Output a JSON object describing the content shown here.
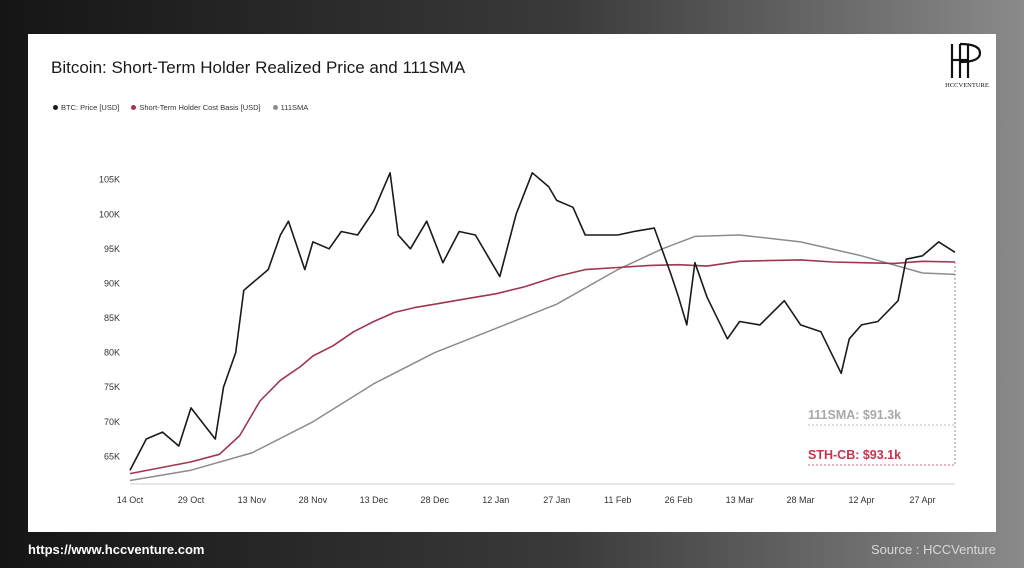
{
  "header": {
    "title": "Bitcoin: Short-Term Holder Realized Price and 111SMA"
  },
  "brand": {
    "logo_text": "HCCVENTURE"
  },
  "footer": {
    "url": "https://www.hccventure.com",
    "source": "Source : HCCVenture"
  },
  "colors": {
    "price": "#1a1a1a",
    "sth": "#a0354f",
    "sma": "#8c8c8c",
    "sth_label": "#c8324e",
    "sma_label": "#a8a8a8"
  },
  "chart_data": {
    "type": "line",
    "title": "Bitcoin: Short-Term Holder Realized Price and 111SMA",
    "xlabel": "",
    "ylabel": "",
    "ylim": [
      61000,
      109000
    ],
    "x_ticks": [
      "14 Oct",
      "29 Oct",
      "13 Nov",
      "28 Nov",
      "13 Dec",
      "28 Dec",
      "12 Jan",
      "27 Jan",
      "11 Feb",
      "26 Feb",
      "13 Mar",
      "28 Mar",
      "12 Apr",
      "27 Apr"
    ],
    "y_ticks": [
      {
        "value": 65000,
        "label": "65K"
      },
      {
        "value": 70000,
        "label": "70K"
      },
      {
        "value": 75000,
        "label": "75K"
      },
      {
        "value": 80000,
        "label": "80K"
      },
      {
        "value": 85000,
        "label": "85K"
      },
      {
        "value": 90000,
        "label": "90K"
      },
      {
        "value": 95000,
        "label": "95K"
      },
      {
        "value": 100000,
        "label": "100K"
      },
      {
        "value": 105000,
        "label": "105K"
      }
    ],
    "legend": [
      "BTC: Price [USD]",
      "Short-Term Holder Cost Basis [USD]",
      "111SMA"
    ],
    "legend_placement": "top-left",
    "grid": false,
    "series": [
      {
        "name": "BTC: Price [USD]",
        "x": [
          "2024-10-14",
          "2024-10-18",
          "2024-10-22",
          "2024-10-26",
          "2024-10-29",
          "2024-11-02",
          "2024-11-04",
          "2024-11-06",
          "2024-11-09",
          "2024-11-11",
          "2024-11-13",
          "2024-11-17",
          "2024-11-20",
          "2024-11-22",
          "2024-11-26",
          "2024-11-28",
          "2024-12-02",
          "2024-12-05",
          "2024-12-09",
          "2024-12-13",
          "2024-12-17",
          "2024-12-19",
          "2024-12-22",
          "2024-12-26",
          "2024-12-30",
          "2025-01-03",
          "2025-01-07",
          "2025-01-10",
          "2025-01-13",
          "2025-01-17",
          "2025-01-21",
          "2025-01-25",
          "2025-01-27",
          "2025-01-31",
          "2025-02-03",
          "2025-02-07",
          "2025-02-11",
          "2025-02-15",
          "2025-02-20",
          "2025-02-24",
          "2025-02-26",
          "2025-02-28",
          "2025-03-02",
          "2025-03-05",
          "2025-03-10",
          "2025-03-13",
          "2025-03-18",
          "2025-03-24",
          "2025-03-28",
          "2025-04-02",
          "2025-04-07",
          "2025-04-09",
          "2025-04-12",
          "2025-04-16",
          "2025-04-21",
          "2025-04-23",
          "2025-04-27",
          "2025-05-01",
          "2025-05-05"
        ],
        "values": [
          63000,
          67500,
          68500,
          66500,
          72000,
          69000,
          67500,
          75000,
          80000,
          89000,
          90000,
          92000,
          97000,
          99000,
          92000,
          96000,
          95000,
          97500,
          97000,
          100500,
          106000,
          97000,
          95000,
          99000,
          93000,
          97500,
          97000,
          94000,
          91000,
          100000,
          106000,
          104000,
          102000,
          101000,
          97000,
          97000,
          97000,
          97500,
          98000,
          91500,
          88000,
          84000,
          93000,
          88000,
          82000,
          84500,
          84000,
          87500,
          84000,
          83000,
          77000,
          82000,
          84000,
          84500,
          87500,
          93500,
          94000,
          96000,
          94500
        ]
      },
      {
        "name": "Short-Term Holder Cost Basis [USD]",
        "x": [
          "2024-10-14",
          "2024-10-22",
          "2024-10-29",
          "2024-11-05",
          "2024-11-10",
          "2024-11-15",
          "2024-11-20",
          "2024-11-25",
          "2024-11-28",
          "2024-12-03",
          "2024-12-08",
          "2024-12-13",
          "2024-12-18",
          "2024-12-23",
          "2024-12-28",
          "2025-01-05",
          "2025-01-12",
          "2025-01-19",
          "2025-01-27",
          "2025-02-03",
          "2025-02-11",
          "2025-02-19",
          "2025-02-26",
          "2025-03-05",
          "2025-03-13",
          "2025-03-20",
          "2025-03-28",
          "2025-04-05",
          "2025-04-12",
          "2025-04-20",
          "2025-04-27",
          "2025-05-05"
        ],
        "values": [
          62500,
          63400,
          64200,
          65300,
          68000,
          73000,
          76000,
          78000,
          79500,
          81000,
          83000,
          84500,
          85800,
          86500,
          87000,
          87800,
          88500,
          89500,
          91000,
          92000,
          92300,
          92600,
          92700,
          92500,
          93200,
          93300,
          93400,
          93100,
          93000,
          92900,
          93200,
          93100
        ]
      },
      {
        "name": "111SMA",
        "x": [
          "2024-10-14",
          "2024-10-29",
          "2024-11-13",
          "2024-11-28",
          "2024-12-13",
          "2024-12-28",
          "2025-01-12",
          "2025-01-27",
          "2025-02-11",
          "2025-02-22",
          "2025-03-02",
          "2025-03-13",
          "2025-03-28",
          "2025-04-12",
          "2025-04-27",
          "2025-05-05"
        ],
        "values": [
          61500,
          63000,
          65500,
          70000,
          75500,
          80000,
          83500,
          87000,
          92000,
          95000,
          96800,
          97000,
          96000,
          94000,
          91500,
          91300
        ]
      }
    ],
    "annotations": [
      {
        "text": "111SMA: $91.3k",
        "value": 91300,
        "series": "111SMA"
      },
      {
        "text": "STH-CB: $93.1k",
        "value": 93100,
        "series": "Short-Term Holder Cost Basis [USD]"
      }
    ]
  }
}
